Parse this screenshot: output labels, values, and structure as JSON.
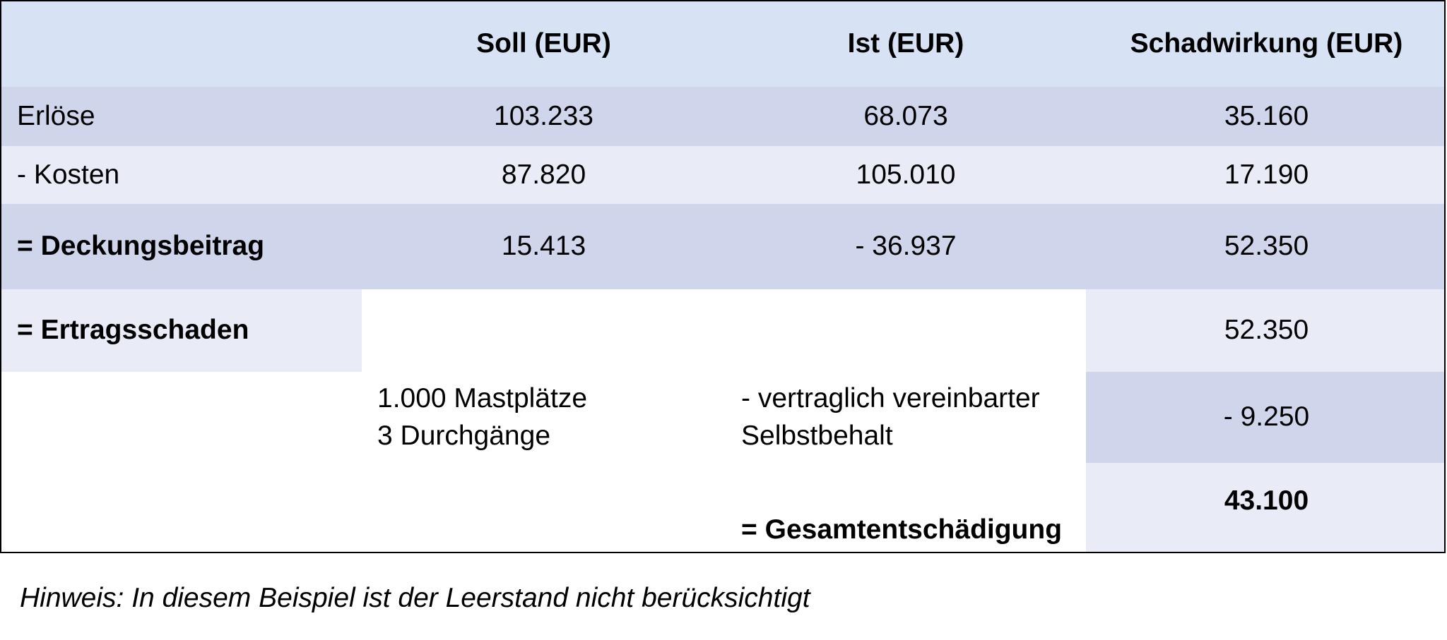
{
  "table": {
    "headers": {
      "soll": "Soll (EUR)",
      "ist": "Ist (EUR)",
      "schadwirkung": "Schadwirkung (EUR)"
    },
    "rows": {
      "erloese": {
        "label": "Erlöse",
        "soll": "103.233",
        "ist": "68.073",
        "schadwirkung": "35.160"
      },
      "kosten": {
        "label": "- Kosten",
        "soll": "87.820",
        "ist": "105.010",
        "schadwirkung": "17.190"
      },
      "deckungsbeitrag": {
        "label": "= Deckungsbeitrag",
        "soll": "15.413",
        "ist": "- 36.937",
        "schadwirkung": "52.350"
      },
      "ertragsschaden": {
        "label": "= Ertragsschaden",
        "schadwirkung": "52.350"
      },
      "selbstbehalt": {
        "info_line1": "1.000 Mastplätze",
        "info_line2": "3 Durchgänge",
        "label_line1": "- vertraglich vereinbarter",
        "label_line2": "Selbstbehalt",
        "schadwirkung": "- 9.250"
      },
      "gesamt": {
        "label": "= Gesamtentschädigung",
        "schadwirkung": "43.100"
      }
    }
  },
  "note": "Hinweis: In diesem Beispiel ist der Leerstand nicht berücksichtigt",
  "colors": {
    "header": "#d7e3f4",
    "dark_row": "#cfd5eb",
    "light_row": "#e9ecf6"
  }
}
